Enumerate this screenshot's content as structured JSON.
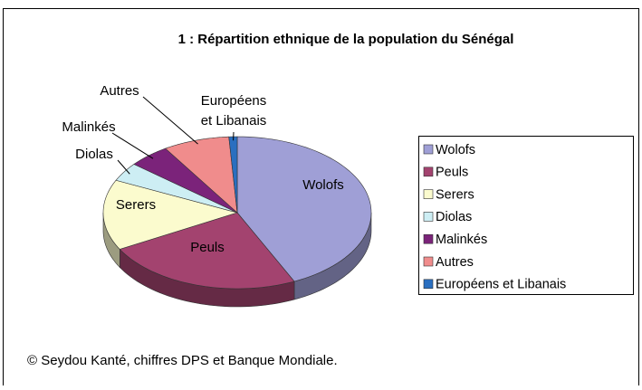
{
  "chart_data": {
    "type": "pie",
    "title": "1 : Répartition ethnique de la population du Sénégal",
    "categories": [
      "Wolofs",
      "Peuls",
      "Serers",
      "Diolas",
      "Malinkés",
      "Autres",
      "Européens et Libanais"
    ],
    "values": [
      43,
      24,
      15,
      4,
      5,
      8,
      1
    ],
    "colors": [
      "#9f9fd6",
      "#a3436f",
      "#fbfbce",
      "#cdeef4",
      "#7b237a",
      "#f08c8c",
      "#2a6fc0"
    ],
    "legend": "right",
    "source": "© Seydou Kanté, chiffres DPS et Banque Mondiale."
  }
}
